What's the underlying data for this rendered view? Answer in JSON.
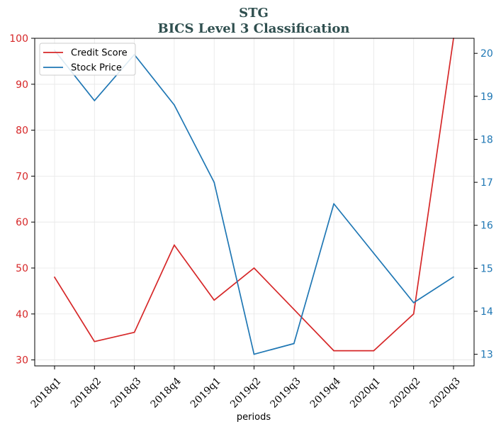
{
  "chart_data": {
    "type": "line",
    "title": "STG",
    "subtitle": "BICS Level 3 Classification",
    "xlabel": "periods",
    "categories": [
      "2018q1",
      "2018q2",
      "2018q3",
      "2018q4",
      "2019q1",
      "2019q2",
      "2019q3",
      "2019q4",
      "2020q1",
      "2020q2",
      "2020q3"
    ],
    "series": [
      {
        "name": "Credit Score",
        "axis": "left",
        "color": "#d62728",
        "values": [
          48,
          34,
          36,
          55,
          43,
          50,
          41,
          32,
          32,
          40,
          100
        ]
      },
      {
        "name": "Stock Price",
        "axis": "right",
        "color": "#1f77b4",
        "values": [
          20.07,
          18.9,
          19.97,
          18.8,
          17.0,
          13.0,
          13.25,
          16.5,
          15.35,
          14.2,
          14.8
        ]
      }
    ],
    "y_left": {
      "ylim": [
        28.7,
        100
      ],
      "ticks": [
        "30",
        "40",
        "50",
        "60",
        "70",
        "80",
        "90",
        "100"
      ],
      "color": "#d62728"
    },
    "y_right": {
      "ylim": [
        12.73,
        20.35
      ],
      "ticks": [
        "13",
        "14",
        "15",
        "16",
        "17",
        "18",
        "19",
        "20"
      ],
      "color": "#1f77b4"
    },
    "grid": true,
    "legend": "top-left"
  }
}
